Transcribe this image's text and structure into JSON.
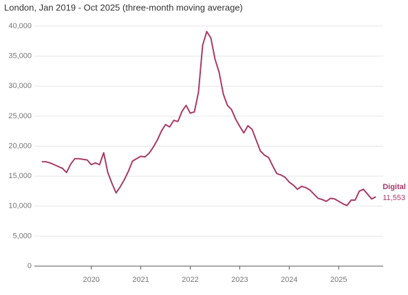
{
  "chart_data": {
    "type": "line",
    "title": "London, Jan 2019 - Oct 2025 (three-month moving average)",
    "x": [
      "2019-01",
      "2019-02",
      "2019-03",
      "2019-04",
      "2019-05",
      "2019-06",
      "2019-07",
      "2019-08",
      "2019-09",
      "2019-10",
      "2019-11",
      "2019-12",
      "2020-01",
      "2020-02",
      "2020-03",
      "2020-04",
      "2020-05",
      "2020-06",
      "2020-07",
      "2020-08",
      "2020-09",
      "2020-10",
      "2020-11",
      "2020-12",
      "2021-01",
      "2021-02",
      "2021-03",
      "2021-04",
      "2021-05",
      "2021-06",
      "2021-07",
      "2021-08",
      "2021-09",
      "2021-10",
      "2021-11",
      "2021-12",
      "2022-01",
      "2022-02",
      "2022-03",
      "2022-04",
      "2022-05",
      "2022-06",
      "2022-07",
      "2022-08",
      "2022-09",
      "2022-10",
      "2022-11",
      "2022-12",
      "2023-01",
      "2023-02",
      "2023-03",
      "2023-04",
      "2023-05",
      "2023-06",
      "2023-07",
      "2023-08",
      "2023-09",
      "2023-10",
      "2023-11",
      "2023-12",
      "2024-01",
      "2024-02",
      "2024-03",
      "2024-04",
      "2024-05",
      "2024-06",
      "2024-07",
      "2024-08",
      "2024-09",
      "2024-10",
      "2024-11",
      "2024-12",
      "2025-01",
      "2025-02",
      "2025-03",
      "2025-04",
      "2025-05",
      "2025-06",
      "2025-07",
      "2025-08",
      "2025-09",
      "2025-10"
    ],
    "series": [
      {
        "name": "Digital",
        "color": "#a83866",
        "values": [
          17400,
          17400,
          17200,
          16900,
          16600,
          16300,
          15600,
          17000,
          17900,
          17900,
          17800,
          17700,
          16900,
          17200,
          16900,
          18900,
          15600,
          13800,
          12200,
          13200,
          14400,
          15800,
          17500,
          17900,
          18300,
          18200,
          18800,
          19800,
          21000,
          22500,
          23600,
          23200,
          24300,
          24100,
          25800,
          26800,
          25500,
          25700,
          29000,
          36800,
          39100,
          38000,
          34500,
          32300,
          28700,
          26800,
          26100,
          24500,
          23300,
          22200,
          23400,
          22800,
          21000,
          19200,
          18500,
          18100,
          16700,
          15400,
          15200,
          14800,
          14000,
          13500,
          12800,
          13300,
          13100,
          12700,
          12000,
          11300,
          11100,
          10800,
          11300,
          11200,
          10800,
          10400,
          10100,
          11000,
          11000,
          12500,
          12800,
          12000,
          11200,
          11553
        ],
        "value_labels": [
          null,
          null,
          null,
          null,
          null,
          null,
          null,
          null,
          null,
          null,
          null,
          null,
          null,
          null,
          null,
          null,
          null,
          null,
          null,
          null,
          null,
          null,
          null,
          null,
          null,
          null,
          null,
          null,
          null,
          null,
          null,
          null,
          null,
          null,
          null,
          null,
          null,
          null,
          null,
          null,
          null,
          null,
          null,
          null,
          null,
          null,
          null,
          null,
          null,
          null,
          null,
          null,
          null,
          null,
          null,
          null,
          null,
          null,
          null,
          null,
          null,
          null,
          null,
          null,
          null,
          null,
          null,
          null,
          null,
          null,
          null,
          null,
          null,
          null,
          null,
          null,
          null,
          null,
          null,
          null,
          null,
          "11,553"
        ]
      }
    ],
    "xlim": [
      2018.85,
      2025.9
    ],
    "xticks": [
      2020,
      2021,
      2022,
      2023,
      2024,
      2025
    ],
    "ylim": [
      0,
      40000
    ],
    "yticks": [
      0,
      {
        "value": 5000,
        "label": "5,000"
      },
      {
        "value": 10000,
        "label": "10,000"
      },
      {
        "value": 15000,
        "label": "15,000"
      },
      {
        "value": 20000,
        "label": "20,000"
      },
      {
        "value": 25000,
        "label": "25,000"
      },
      {
        "value": 30000,
        "label": "30,000"
      },
      {
        "value": 35000,
        "label": "35,000"
      },
      {
        "value": 40000,
        "label": "40,000"
      }
    ],
    "grid": true
  }
}
